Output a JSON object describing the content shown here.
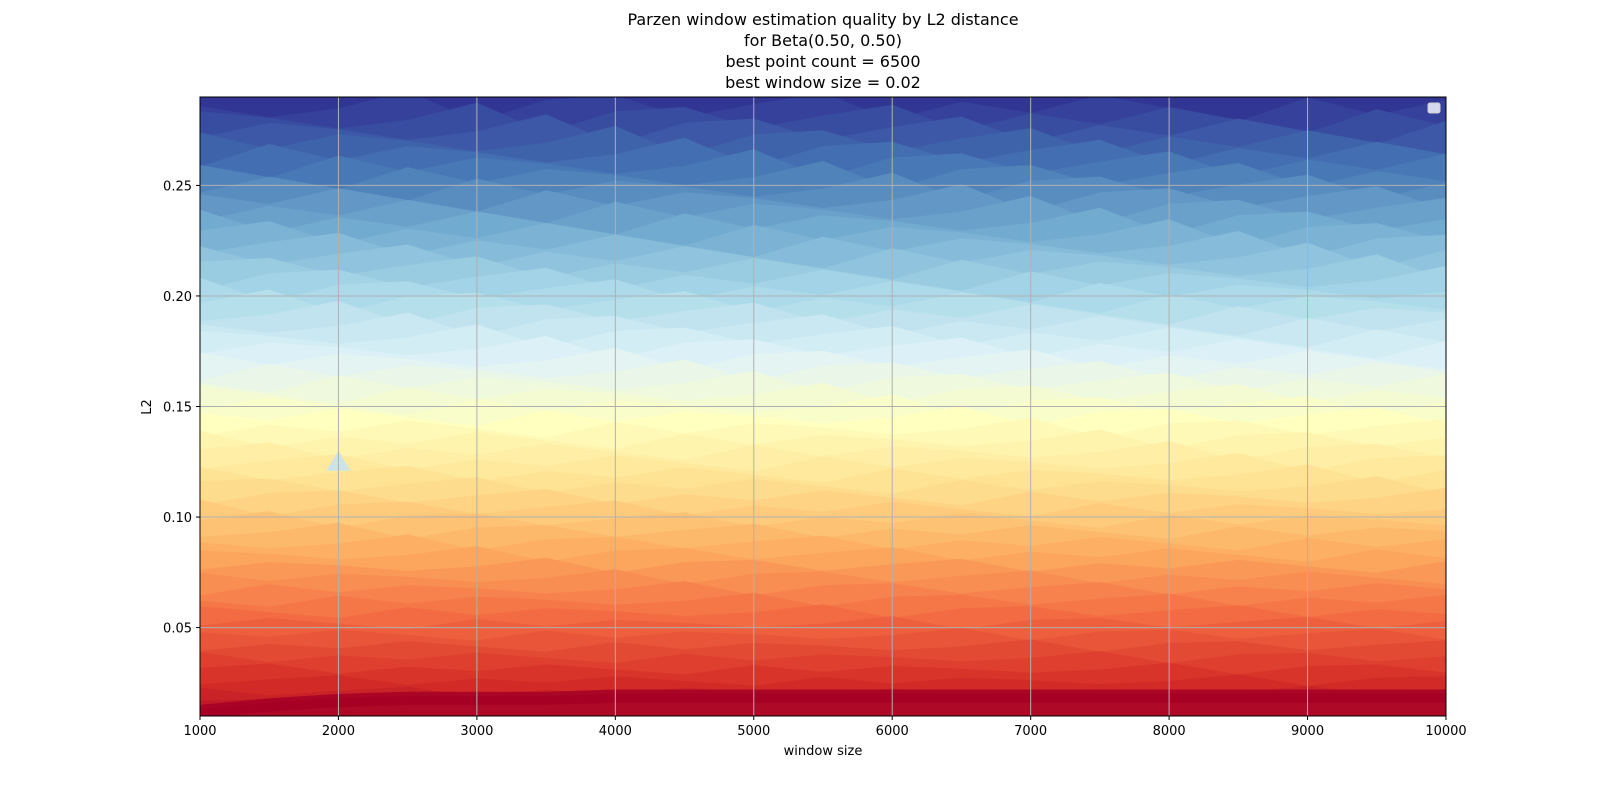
{
  "chart_data": {
    "type": "heatmap",
    "subtype": "filled-contour",
    "title_lines": [
      "Parzen window estimation quality by L2 distance",
      "for Beta(0.50, 0.50)",
      "best point count = 6500",
      "best window size = 0.02"
    ],
    "xlabel": "window size",
    "ylabel": "L2",
    "xlim": [
      1000,
      10000
    ],
    "ylim": [
      0.01,
      0.29
    ],
    "xticks": [
      1000,
      2000,
      3000,
      4000,
      5000,
      6000,
      7000,
      8000,
      9000,
      10000
    ],
    "yticks": [
      0.05,
      0.1,
      0.15,
      0.2,
      0.25
    ],
    "ytick_labels": [
      "0.05",
      "0.10",
      "0.15",
      "0.20",
      "0.25"
    ],
    "grid": true,
    "legend": {
      "placement": "top-right",
      "entries": []
    },
    "colormap": "RdYlBu",
    "colormap_stops": [
      "#a50026",
      "#d73027",
      "#f46d43",
      "#fdae61",
      "#fee090",
      "#ffffbf",
      "#e0f3f8",
      "#abd9e9",
      "#74add1",
      "#4575b4",
      "#313695"
    ],
    "color_value_range": [
      0.0,
      0.29
    ],
    "marker": {
      "shape": "triangle",
      "x": 2000,
      "y": 0.125,
      "color": "#c6e3ee"
    },
    "x_samples": [
      1000,
      1500,
      2000,
      2500,
      3000,
      3500,
      4000,
      4500,
      5000,
      5500,
      6000,
      6500,
      7000,
      7500,
      8000,
      8500,
      9000,
      9500,
      10000
    ],
    "contour_level_offsets": [
      0.0,
      0.008,
      -0.006,
      0.004,
      0.006,
      -0.004,
      0.002,
      0.007,
      -0.005,
      0.003,
      -0.002,
      0.006,
      0.0,
      -0.006,
      0.005,
      -0.003,
      0.004,
      0.001,
      -0.004
    ],
    "min_band_y_by_x": [
      0.013,
      0.016,
      0.018,
      0.019,
      0.019,
      0.019,
      0.02,
      0.02,
      0.02,
      0.02,
      0.02,
      0.02,
      0.02,
      0.02,
      0.02,
      0.02,
      0.02,
      0.02,
      0.02
    ]
  }
}
